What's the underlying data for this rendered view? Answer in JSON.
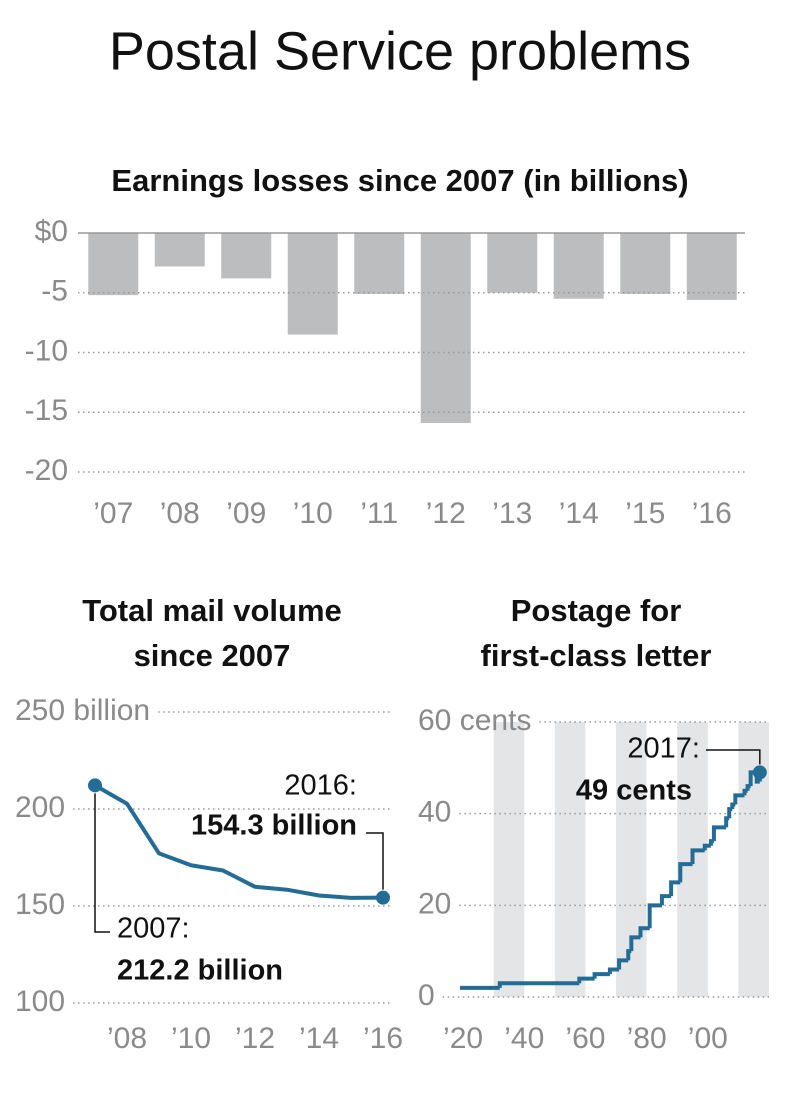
{
  "title": "Postal Service problems",
  "chart_data": [
    {
      "type": "bar",
      "title": "Earnings losses since 2007 (in billions)",
      "categories": [
        "’07",
        "’08",
        "’09",
        "’10",
        "’11",
        "’12",
        "’13",
        "’14",
        "’15",
        "’16"
      ],
      "values": [
        -5.2,
        -2.8,
        -3.8,
        -8.5,
        -5.1,
        -15.9,
        -5.0,
        -5.5,
        -5.1,
        -5.6
      ],
      "color": "#bcbdbf",
      "ylim": [
        -20,
        0
      ],
      "yticks": [
        {
          "value": 0,
          "label": "$0"
        },
        -5,
        -10,
        -15,
        -20
      ],
      "grid": true
    },
    {
      "type": "line",
      "title": [
        "Total mail volume",
        "since 2007"
      ],
      "x": [
        2007,
        2008,
        2009,
        2010,
        2011,
        2012,
        2013,
        2014,
        2015,
        2016
      ],
      "values": [
        212.2,
        202.7,
        177.1,
        171.0,
        168.3,
        159.9,
        158.4,
        155.4,
        154.2,
        154.3
      ],
      "color": "#236c96",
      "xlim": [
        2006.7,
        2016.3
      ],
      "xticks": [
        {
          "value": 2008,
          "label": "’08"
        },
        {
          "value": 2010,
          "label": "’10"
        },
        {
          "value": 2012,
          "label": "’12"
        },
        {
          "value": 2014,
          "label": "’14"
        },
        {
          "value": 2016,
          "label": "’16"
        }
      ],
      "ylim": [
        100,
        250
      ],
      "yticks": [
        {
          "value": 250,
          "label": "250 billion"
        },
        200,
        150,
        100
      ],
      "grid": true,
      "annotations": [
        {
          "text": "2007:",
          "value_label": "212.2 billion"
        },
        {
          "text": "2016:",
          "value_label": "154.3 billion"
        }
      ]
    },
    {
      "type": "line",
      "step": true,
      "title": [
        "Postage for",
        "first-class letter"
      ],
      "x": [
        1919,
        1932,
        1958,
        1963,
        1968,
        1971,
        1974,
        1975,
        1978,
        1981,
        1981,
        1985,
        1988,
        1991,
        1995,
        1999,
        2001,
        2002,
        2006,
        2007,
        2008,
        2009,
        2012,
        2013,
        2014,
        2016,
        2017
      ],
      "values": [
        2,
        3,
        4,
        5,
        6,
        8,
        10,
        13,
        15,
        18,
        20,
        22,
        25,
        29,
        32,
        33,
        34,
        37,
        39,
        41,
        42,
        44,
        45,
        46,
        49,
        47,
        49
      ],
      "color": "#236c96",
      "band_color": "#e4e5e7",
      "bands": [
        [
          1930,
          1940
        ],
        [
          1950,
          1960
        ],
        [
          1970,
          1980
        ],
        [
          1990,
          2000
        ],
        [
          2010,
          2020
        ]
      ],
      "xlim": [
        1919,
        2020
      ],
      "xticks": [
        {
          "value": 1920,
          "label": "’20"
        },
        {
          "value": 1940,
          "label": "’40"
        },
        {
          "value": 1960,
          "label": "’60"
        },
        {
          "value": 1980,
          "label": "’80"
        },
        {
          "value": 2000,
          "label": "’00"
        }
      ],
      "ylim": [
        0,
        60
      ],
      "yticks": [
        0,
        20,
        40,
        {
          "value": 60,
          "label": "60 cents"
        }
      ],
      "grid": true,
      "annotations": [
        {
          "text": "2017:",
          "value_label": "49 cents"
        }
      ]
    }
  ]
}
